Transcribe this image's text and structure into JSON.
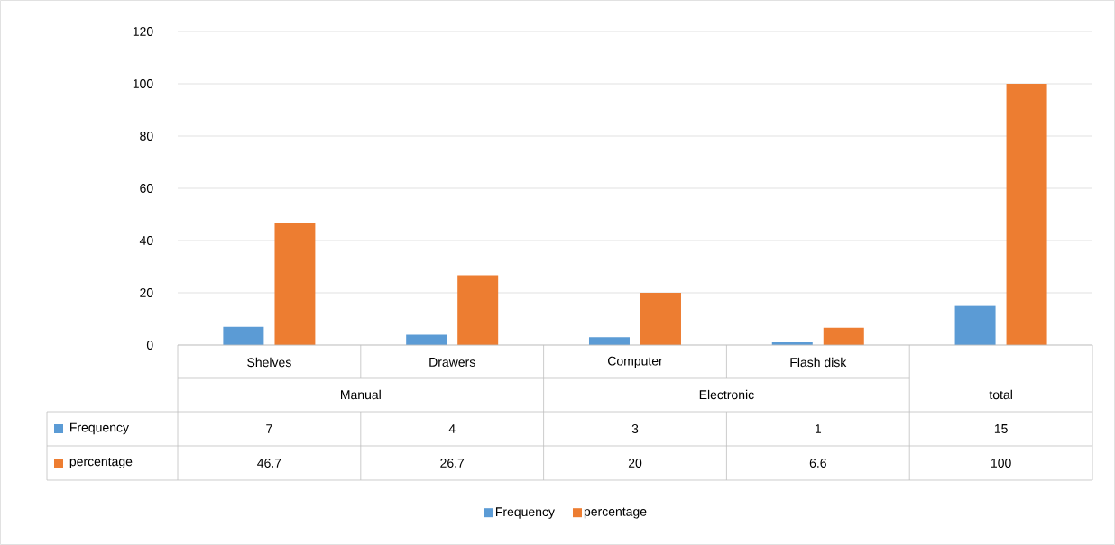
{
  "chart_data": {
    "type": "bar",
    "categories": [
      "Shelves",
      "Drawers",
      "Computer",
      "Flash disk",
      null
    ],
    "annotations": [
      "Manual",
      "Electronic",
      "total"
    ],
    "series": [
      {
        "name": "Frequency",
        "color": "#5b9bd5",
        "values": [
          7,
          4,
          3,
          1,
          15
        ]
      },
      {
        "name": "percentage",
        "color": "#ed7d31",
        "values": [
          46.7,
          26.7,
          20,
          6.6,
          100
        ]
      }
    ],
    "ylim": [
      0,
      120
    ],
    "yticks": [
      0,
      20,
      40,
      60,
      80,
      100,
      120
    ],
    "grid": "y",
    "legend": "bottom",
    "data_labels": true
  }
}
